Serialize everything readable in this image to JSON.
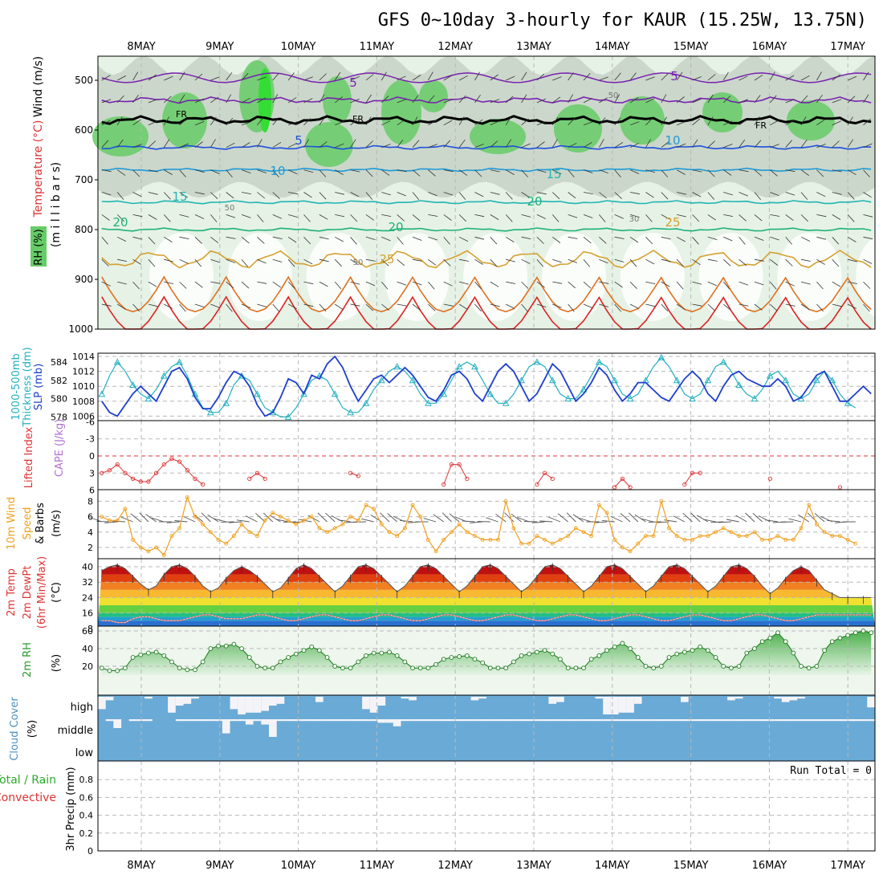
{
  "chart_data": {
    "type": "meteogram",
    "title": "GFS 0~10day 3-hourly for KAUR (15.25W, 13.75N)",
    "dates": [
      "8MAY",
      "9MAY",
      "10MAY",
      "11MAY",
      "12MAY",
      "13MAY",
      "14MAY",
      "15MAY",
      "16MAY",
      "17MAY"
    ],
    "colors": {
      "grid": "#b8b8b8",
      "rh_fill": "#66cc66",
      "rh_light": "#e6f2e6",
      "rh_mid": "#c8d4c8",
      "slp": "#1e3fcc",
      "thick": "#22b0c0",
      "li": "#dd3333",
      "wind": "#f0a020",
      "barb": "#555555",
      "rh2m": "#2a9a2a",
      "cloud": "#6aaad6"
    },
    "panels": {
      "upper": {
        "y_ticks": [
          "500",
          "600",
          "700",
          "800",
          "900",
          "1000"
        ],
        "y_label": "(m i l l i b a r s)",
        "side_label_wind": "Wind (m/s)",
        "side_label_temp": "Temperature (°C)",
        "side_label_rh": "RH (%)",
        "isotherm_labels": [
          {
            "text": "5",
            "v": "5"
          },
          {
            "text": "5",
            "v": "5"
          },
          {
            "text": "5",
            "v": "5"
          },
          {
            "text": "10",
            "v": "10"
          },
          {
            "text": "10",
            "v": "10"
          },
          {
            "text": "15",
            "v": "15"
          },
          {
            "text": "15",
            "v": "15"
          },
          {
            "text": "20",
            "v": "20"
          },
          {
            "text": "20",
            "v": "20"
          },
          {
            "text": "20",
            "v": "20"
          },
          {
            "text": "25",
            "v": "25"
          },
          {
            "text": "25",
            "v": "25"
          }
        ],
        "freezing_labels": [
          "FR",
          "FR",
          "FR"
        ],
        "rh_labels": [
          "50",
          "50",
          "30",
          "50"
        ]
      },
      "slp": {
        "left_ticks": [
          "584",
          "582",
          "580",
          "578"
        ],
        "right_ticks": [
          "1014",
          "1012",
          "1010",
          "1008",
          "1006"
        ],
        "label_a": "1000-500mb",
        "label_b": "Thickness (dm)",
        "label_c": "SLP (mb)",
        "slp_values": [
          1008,
          1006.5,
          1006,
          1007.5,
          1009,
          1010,
          1009,
          1008,
          1010,
          1012,
          1012.5,
          1011,
          1008.5,
          1007,
          1007,
          1008.5,
          1010.5,
          1012,
          1011.5,
          1010,
          1007.5,
          1006,
          1006.5,
          1008.5,
          1011,
          1010.5,
          1009,
          1011.5,
          1011,
          1013,
          1014,
          1012.5,
          1010,
          1008,
          1009.5,
          1011,
          1011.5,
          1010.5,
          1011.5,
          1012.5,
          1011.5,
          1010,
          1008.5,
          1008,
          1009.5,
          1011.5,
          1012,
          1011,
          1009,
          1008,
          1010,
          1012,
          1013,
          1012,
          1010,
          1008,
          1009,
          1011,
          1013,
          1012,
          1010,
          1008,
          1009,
          1010.5,
          1012.5,
          1011.5,
          1009.5,
          1008,
          1009,
          1010.5,
          1010.5,
          1009.5,
          1008.5,
          1008,
          1009.5,
          1011,
          1012,
          1011,
          1009,
          1008,
          1010,
          1011.5,
          1012,
          1011,
          1010.5,
          1010,
          1010,
          1011,
          1010,
          1008,
          1008.5,
          1010,
          1011.5,
          1012,
          1010,
          1008,
          1008,
          1009,
          1010,
          1009
        ],
        "thick_values": [
          580.5,
          582.5,
          584,
          583,
          581.5,
          580.5,
          580,
          581,
          582.5,
          583.5,
          584,
          582.5,
          580.5,
          579,
          578.5,
          578.5,
          579.5,
          581.5,
          582.5,
          582,
          580.5,
          579,
          578.5,
          578,
          578,
          579,
          580.5,
          582,
          582.5,
          582,
          580.5,
          579,
          578.5,
          578.5,
          579.5,
          581,
          582,
          583,
          583.5,
          583,
          582,
          580.5,
          579.5,
          579.5,
          580.5,
          582,
          583.5,
          584,
          583.5,
          582,
          580.5,
          579.5,
          579.5,
          580.5,
          582,
          583.5,
          584,
          583.5,
          582,
          580.5,
          580,
          580,
          581,
          582.5,
          584,
          583.5,
          582,
          580.5,
          580,
          580.5,
          582,
          583.5,
          584.5,
          583.5,
          582,
          580.5,
          580,
          580.5,
          582,
          583.5,
          584,
          583,
          581.5,
          580.5,
          580,
          581,
          582.5,
          583,
          582,
          580.5,
          580,
          580.5,
          582,
          583,
          582,
          580.5,
          579.5,
          579
        ]
      },
      "li": {
        "left_ticks": [
          "-6",
          "-3",
          "0",
          "3",
          "6"
        ],
        "label_li": "Lifted Index",
        "label_cape": "CAPE (J/kg)",
        "li_values": [
          3,
          2.5,
          1.5,
          3,
          4,
          4.5,
          4.5,
          3,
          1.5,
          0.5,
          1,
          2.5,
          4,
          5,
          6,
          6,
          6,
          6,
          6,
          4,
          3,
          4,
          6,
          6,
          6,
          6,
          6,
          6,
          6,
          6,
          6,
          6,
          3,
          3.5,
          6,
          6,
          6,
          6,
          6,
          6,
          6,
          6,
          6,
          6,
          5,
          1.5,
          1.5,
          4,
          6,
          6,
          6,
          6,
          6,
          6,
          6,
          6,
          5,
          3,
          4,
          6,
          6,
          6,
          6,
          6,
          6,
          6,
          5.5,
          4,
          5.5,
          6,
          6,
          6,
          6,
          6,
          6,
          5,
          3,
          3,
          6,
          6,
          6,
          6,
          6,
          6,
          6,
          6,
          4,
          6,
          6,
          6,
          6,
          6,
          6,
          6,
          6,
          5.5,
          6,
          6
        ],
        "zero_line": 0
      },
      "wind10": {
        "left_ticks": [
          "8",
          "6",
          "4",
          "2"
        ],
        "label_a": "10m Wind",
        "label_b": "Speed",
        "label_c": "& Barbs",
        "label_unit": "(m/s)",
        "speed_values": [
          6,
          5.5,
          5.5,
          7,
          3,
          2,
          1.5,
          2,
          1,
          3.5,
          4.5,
          8.5,
          6,
          5,
          4,
          3,
          2.5,
          3.5,
          5,
          4,
          3.5,
          5.5,
          6.5,
          6,
          5.5,
          5,
          5.5,
          6,
          4.5,
          4,
          4.5,
          5,
          6,
          5.5,
          7.5,
          7,
          5,
          4,
          3.5,
          4.5,
          7.5,
          6,
          3,
          1.5,
          3,
          4,
          5,
          4,
          3.5,
          3,
          3,
          3,
          8,
          4.5,
          2.5,
          2.5,
          3.5,
          3,
          2.5,
          3,
          3.5,
          4.5,
          4,
          3.5,
          7.5,
          6.5,
          3,
          2,
          1.5,
          2.5,
          3.5,
          3.5,
          8,
          4.5,
          3.5,
          3,
          3,
          3.5,
          3.5,
          4,
          4.5,
          4,
          3.5,
          3.5,
          4,
          3,
          3,
          3.5,
          3,
          3,
          4.5,
          7.5,
          5,
          4,
          3.5,
          3.5,
          3,
          2.5
        ]
      },
      "temp2m": {
        "left_ticks": [
          "40",
          "32",
          "24",
          "16",
          "8"
        ],
        "label_a": "2m Temp",
        "label_b": "2m DewPt",
        "label_c": "(6hr Min/Max)",
        "label_unit": "(°C)",
        "temp_values": [
          38,
          40,
          41,
          39,
          35,
          31,
          28,
          30,
          36,
          40,
          41,
          39,
          35,
          30,
          27,
          29,
          34,
          38,
          40,
          38,
          35,
          31,
          27,
          29,
          34,
          39,
          41,
          39,
          35,
          31,
          27,
          30,
          35,
          40,
          41,
          39,
          35,
          31,
          27,
          30,
          35,
          40,
          41,
          39,
          35,
          31,
          27,
          30,
          35,
          40,
          41,
          39,
          35,
          31,
          27,
          30,
          35,
          40,
          41,
          39,
          35,
          31,
          27,
          30,
          35,
          40,
          41,
          39,
          35,
          31,
          27,
          30,
          35,
          40,
          41,
          39,
          35,
          31,
          27,
          30,
          35,
          40,
          41,
          39,
          35,
          30,
          26,
          29,
          34,
          38,
          40,
          38,
          33,
          28,
          26,
          24,
          24,
          24,
          24,
          24
        ],
        "dew_values": [
          12,
          12,
          11,
          11,
          13,
          14,
          14,
          13,
          12,
          12,
          12,
          13,
          14,
          15,
          15,
          14,
          13,
          13,
          13,
          14,
          15,
          15,
          14,
          13,
          12,
          12,
          13,
          14,
          15,
          15,
          14,
          13,
          12,
          12,
          13,
          14,
          15,
          15,
          14,
          13,
          12,
          12,
          13,
          14,
          15,
          15,
          14,
          13,
          12,
          12,
          13,
          14,
          15,
          15,
          14,
          13,
          12,
          12,
          13,
          14,
          15,
          15,
          14,
          13,
          12,
          12,
          13,
          14,
          15,
          15,
          14,
          13,
          12,
          12,
          13,
          14,
          15,
          15,
          14,
          13,
          12,
          12,
          13,
          14,
          15,
          15,
          14,
          13,
          12,
          12,
          13,
          14,
          15,
          15,
          15,
          15,
          15,
          15,
          15,
          15
        ]
      },
      "rh2m": {
        "left_ticks": [
          "60",
          "40",
          "20"
        ],
        "label_a": "2m RH",
        "label_unit": "(%)",
        "rh_values": [
          18,
          15,
          15,
          18,
          30,
          33,
          35,
          36,
          32,
          25,
          18,
          16,
          16,
          25,
          40,
          43,
          43,
          45,
          40,
          30,
          20,
          18,
          18,
          25,
          30,
          34,
          38,
          42,
          38,
          30,
          20,
          18,
          18,
          25,
          32,
          35,
          35,
          36,
          32,
          25,
          18,
          18,
          18,
          22,
          28,
          30,
          31,
          32,
          28,
          24,
          18,
          18,
          18,
          25,
          32,
          34,
          36,
          38,
          34,
          28,
          18,
          18,
          18,
          28,
          32,
          38,
          42,
          46,
          40,
          30,
          20,
          18,
          20,
          30,
          34,
          36,
          38,
          42,
          38,
          30,
          20,
          18,
          20,
          35,
          40,
          48,
          52,
          58,
          48,
          35,
          20,
          18,
          20,
          38,
          48,
          52,
          55,
          58,
          60,
          58
        ],
        "min": 10,
        "max": 60
      },
      "cloud": {
        "label_a": "Cloud Cover",
        "label_unit": "(%)",
        "levels": [
          "high",
          "middle",
          "low"
        ],
        "high": [
          70,
          20,
          0,
          0,
          0,
          0,
          10,
          0,
          0,
          90,
          50,
          40,
          10,
          0,
          0,
          0,
          0,
          70,
          100,
          90,
          90,
          80,
          50,
          40,
          0,
          0,
          0,
          0,
          30,
          0,
          0,
          0,
          0,
          0,
          70,
          90,
          50,
          0,
          0,
          10,
          20,
          0,
          0,
          0,
          0,
          0,
          0,
          0,
          20,
          10,
          0,
          0,
          0,
          0,
          0,
          0,
          0,
          0,
          40,
          30,
          0,
          0,
          0,
          0,
          10,
          100,
          100,
          90,
          90,
          40,
          0,
          0,
          0,
          0,
          0,
          30,
          0,
          0,
          0,
          0,
          0,
          20,
          10,
          0,
          0,
          0,
          0,
          10,
          30,
          20,
          10,
          0,
          0,
          0,
          0,
          0,
          0,
          0,
          0,
          60
        ],
        "middle": [
          0,
          10,
          50,
          0,
          10,
          10,
          10,
          0,
          0,
          0,
          10,
          10,
          10,
          10,
          10,
          10,
          80,
          10,
          10,
          30,
          10,
          30,
          100,
          10,
          10,
          10,
          10,
          10,
          10,
          10,
          10,
          10,
          10,
          10,
          10,
          10,
          20,
          20,
          40,
          10,
          10,
          10,
          10,
          10,
          10,
          10,
          10,
          10,
          10,
          10,
          10,
          10,
          10,
          10,
          10,
          10,
          10,
          10,
          10,
          10,
          10,
          10,
          10,
          10,
          10,
          10,
          10,
          10,
          10,
          10,
          10,
          10,
          10,
          10,
          10,
          10,
          10,
          10,
          10,
          10,
          10,
          10,
          10,
          10,
          10,
          10,
          10,
          10,
          10,
          10,
          10,
          10,
          10,
          10,
          10,
          10,
          10,
          10,
          10,
          10
        ],
        "low": [
          0,
          0,
          0,
          0,
          0,
          0,
          0,
          0,
          0,
          0,
          0,
          0,
          0,
          0,
          0,
          0,
          0,
          0,
          0,
          0,
          0,
          0,
          0,
          0,
          0,
          0,
          0,
          0,
          0,
          0,
          0,
          0,
          0,
          0,
          0,
          0,
          0,
          0,
          0,
          0,
          0,
          0,
          0,
          0,
          0,
          0,
          0,
          0,
          0,
          0,
          0,
          0,
          0,
          0,
          0,
          0,
          0,
          0,
          0,
          0,
          0,
          0,
          0,
          0,
          0,
          0,
          0,
          0,
          0,
          0,
          0,
          0,
          0,
          0,
          0,
          0,
          0,
          0,
          0,
          0,
          0,
          0,
          0,
          0,
          0,
          0,
          0,
          0,
          0,
          0,
          0,
          0,
          0,
          0,
          0,
          0,
          0,
          0,
          0,
          0
        ]
      },
      "precip": {
        "left_ticks": [
          "0.8",
          "0.6",
          "0.4",
          "0.2",
          "0"
        ],
        "label_a": "Total / Rain",
        "label_b": "Convective",
        "label_c": "3hr Precip (mm)",
        "run_total": "Run Total = 0"
      }
    }
  }
}
